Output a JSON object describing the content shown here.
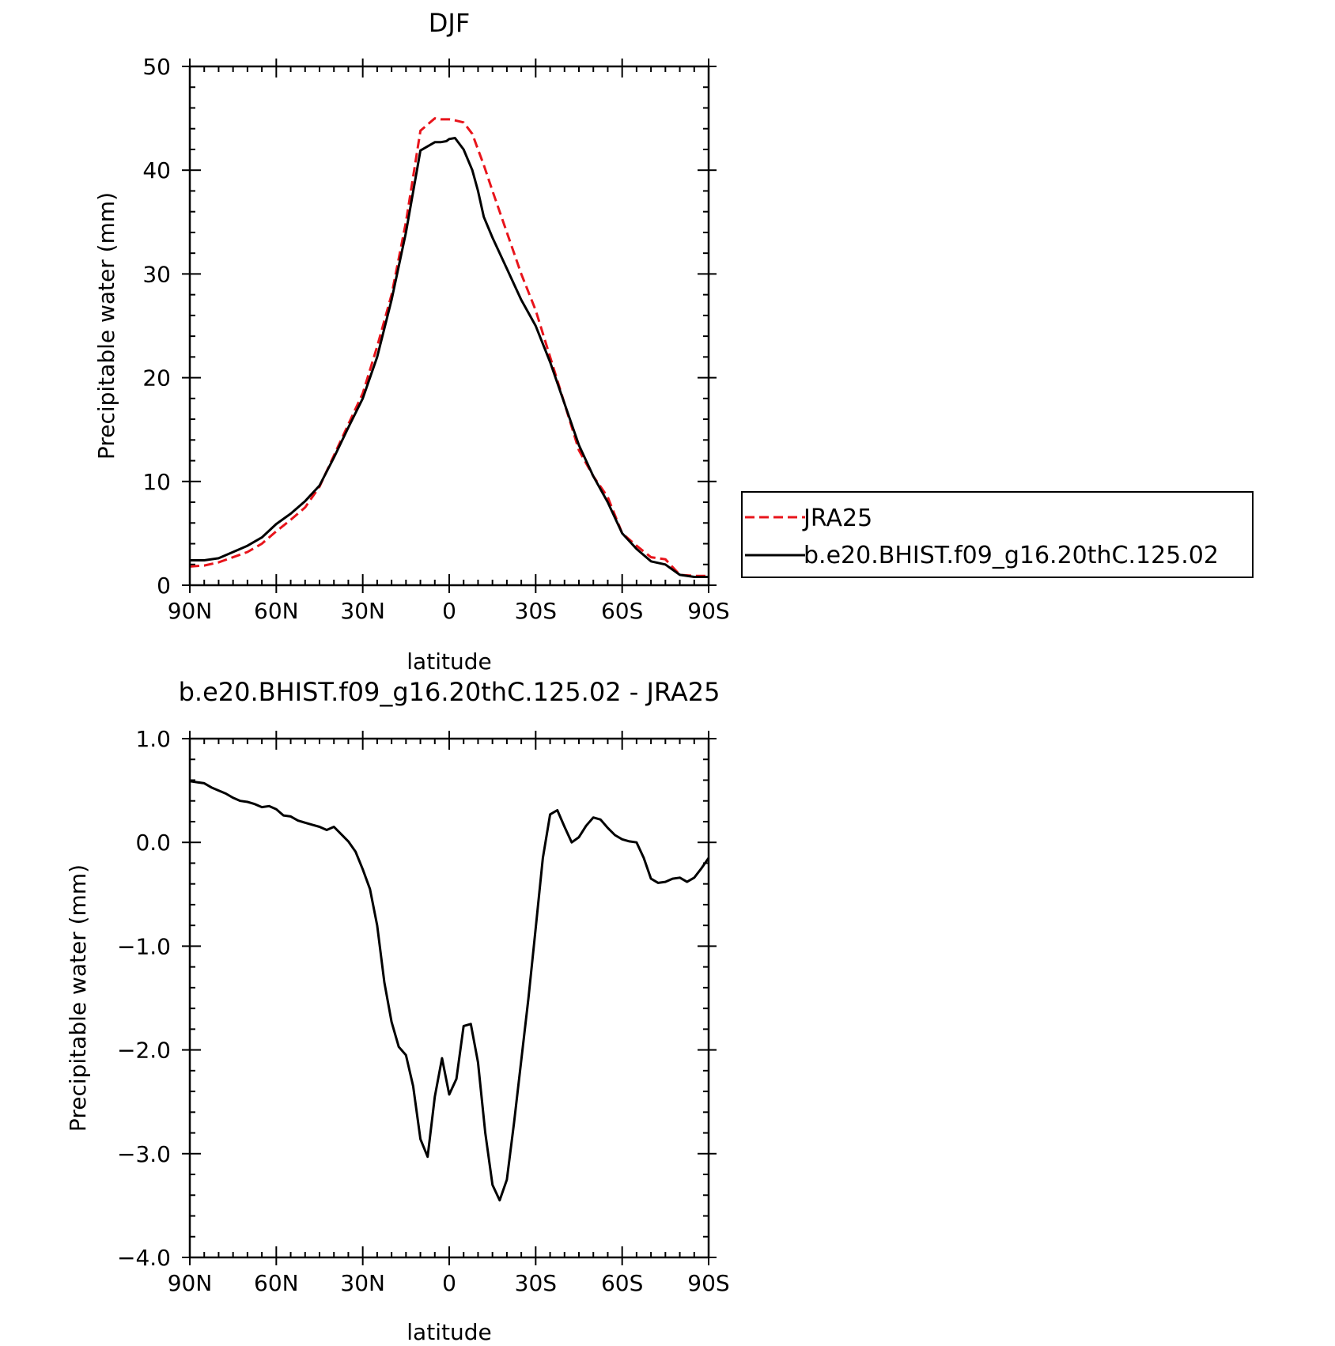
{
  "chart_data": [
    {
      "type": "line",
      "title": "DJF",
      "xlabel": "latitude",
      "ylabel": "Precipitable water (mm)",
      "xlim": [
        90,
        -90
      ],
      "ylim": [
        0,
        50
      ],
      "x_ticks": [
        90,
        60,
        30,
        0,
        -30,
        -60,
        -90
      ],
      "x_tick_labels": [
        "90N",
        "60N",
        "30N",
        "0",
        "30S",
        "60S",
        "90S"
      ],
      "y_ticks": [
        0,
        10,
        20,
        30,
        40,
        50
      ],
      "y_tick_labels": [
        "0",
        "10",
        "20",
        "30",
        "40",
        "50"
      ],
      "legend": {
        "placement": "right"
      },
      "series": [
        {
          "name": "JRA25",
          "color": "#e8141b",
          "style": "dashed",
          "x": [
            90,
            85,
            80,
            75,
            70,
            65,
            60,
            55,
            50,
            45,
            40,
            35,
            30,
            25,
            20,
            15,
            10,
            5,
            3,
            1,
            0,
            -2,
            -5,
            -8,
            -10,
            -12,
            -15,
            -20,
            -25,
            -30,
            -35,
            -40,
            -45,
            -50,
            -55,
            -60,
            -65,
            -70,
            -75,
            -80,
            -85,
            -90
          ],
          "y": [
            1.8,
            1.9,
            2.2,
            2.7,
            3.2,
            4.0,
            5.2,
            6.3,
            7.5,
            9.5,
            12.5,
            15.5,
            18.5,
            23.0,
            28.0,
            35.0,
            43.8,
            45.0,
            44.9,
            44.9,
            44.9,
            44.8,
            44.6,
            43.5,
            42.0,
            40.5,
            38.0,
            34.0,
            30.0,
            26.5,
            22.0,
            17.5,
            13.0,
            10.5,
            8.5,
            5.0,
            3.8,
            2.7,
            2.5,
            1.0,
            0.9,
            0.9
          ]
        },
        {
          "name": "b.e20.BHIST.f09_g16.20thC.125.02",
          "color": "#000000",
          "style": "solid",
          "x": [
            90,
            85,
            80,
            75,
            70,
            65,
            60,
            55,
            50,
            45,
            40,
            35,
            30,
            25,
            20,
            15,
            10,
            5,
            3,
            1,
            0,
            -2,
            -5,
            -8,
            -10,
            -12,
            -15,
            -20,
            -25,
            -30,
            -35,
            -40,
            -45,
            -50,
            -55,
            -60,
            -65,
            -70,
            -75,
            -80,
            -85,
            -90
          ],
          "y": [
            2.4,
            2.4,
            2.6,
            3.2,
            3.8,
            4.6,
            5.9,
            6.9,
            8.1,
            9.6,
            12.3,
            15.2,
            18.0,
            22.0,
            27.5,
            34.0,
            41.9,
            42.7,
            42.7,
            42.8,
            43.0,
            43.1,
            42.0,
            40.0,
            38.0,
            35.5,
            33.5,
            30.5,
            27.5,
            25.0,
            21.5,
            17.5,
            13.5,
            10.5,
            8.0,
            5.0,
            3.5,
            2.3,
            2.0,
            1.0,
            0.8,
            0.8
          ]
        }
      ]
    },
    {
      "type": "line",
      "title": "b.e20.BHIST.f09_g16.20thC.125.02 - JRA25",
      "xlabel": "latitude",
      "ylabel": "Precipitable water (mm)",
      "xlim": [
        90,
        -90
      ],
      "ylim": [
        -4.0,
        1.0
      ],
      "x_ticks": [
        90,
        60,
        30,
        0,
        -30,
        -60,
        -90
      ],
      "x_tick_labels": [
        "90N",
        "60N",
        "30N",
        "0",
        "30S",
        "60S",
        "90S"
      ],
      "y_ticks": [
        1.0,
        0.0,
        -1.0,
        -2.0,
        -3.0,
        -4.0
      ],
      "y_tick_labels": [
        "1.0",
        "0.0",
        "−1.0",
        "−2.0",
        "−3.0",
        "−4.0"
      ],
      "series": [
        {
          "color": "#000000",
          "style": "solid",
          "x": [
            90,
            87.5,
            85,
            82.5,
            80,
            77.5,
            75,
            72.5,
            70,
            67.5,
            65,
            62.5,
            60,
            57.5,
            55,
            52.5,
            50,
            47.5,
            45,
            42.5,
            40,
            37.5,
            35,
            32.5,
            30,
            27.5,
            25,
            22.5,
            20,
            17.5,
            15,
            12.5,
            10,
            7.5,
            5,
            2.5,
            0,
            -2.5,
            -5,
            -7.5,
            -10,
            -12.5,
            -15,
            -17.5,
            -20,
            -22.5,
            -25,
            -27.5,
            -30,
            -32.5,
            -35,
            -37.5,
            -40,
            -42.5,
            -45,
            -47.5,
            -50,
            -52.5,
            -55,
            -57.5,
            -60,
            -62.5,
            -65,
            -67.5,
            -70,
            -72.5,
            -75,
            -77.5,
            -80,
            -82.5,
            -85,
            -87.5,
            -90
          ],
          "y": [
            0.59,
            0.58,
            0.57,
            0.53,
            0.5,
            0.47,
            0.43,
            0.4,
            0.39,
            0.37,
            0.34,
            0.35,
            0.32,
            0.26,
            0.25,
            0.21,
            0.19,
            0.17,
            0.15,
            0.12,
            0.15,
            0.08,
            0.01,
            -0.09,
            -0.26,
            -0.45,
            -0.8,
            -1.35,
            -1.73,
            -1.97,
            -2.05,
            -2.35,
            -2.86,
            -3.03,
            -2.45,
            -2.08,
            -2.43,
            -2.28,
            -1.77,
            -1.75,
            -2.12,
            -2.8,
            -3.3,
            -3.45,
            -3.25,
            -2.7,
            -2.1,
            -1.5,
            -0.83,
            -0.15,
            0.27,
            0.31,
            0.15,
            0.0,
            0.05,
            0.16,
            0.24,
            0.22,
            0.14,
            0.07,
            0.03,
            0.01,
            0.0,
            -0.15,
            -0.35,
            -0.39,
            -0.38,
            -0.35,
            -0.34,
            -0.38,
            -0.34,
            -0.25,
            -0.15
          ]
        }
      ]
    }
  ]
}
